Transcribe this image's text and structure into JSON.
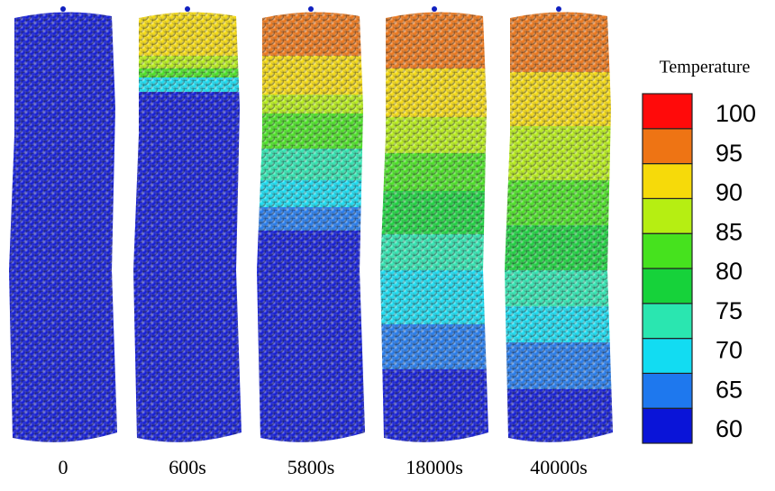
{
  "figure": {
    "columns": [
      {
        "label": "0"
      },
      {
        "label": "600s"
      },
      {
        "label": "5800s"
      },
      {
        "label": "18000s"
      },
      {
        "label": "40000s"
      }
    ],
    "colorbar": {
      "title": "Temperature",
      "ticks": [
        100,
        95,
        90,
        85,
        80,
        75,
        70,
        65,
        60
      ],
      "colors": [
        "#0a14d8",
        "#1e78ee",
        "#12dcf2",
        "#2ae6b0",
        "#16d23a",
        "#46e21e",
        "#b6ee12",
        "#f6da0a",
        "#ee7414",
        "#ff0a0a"
      ]
    }
  }
}
